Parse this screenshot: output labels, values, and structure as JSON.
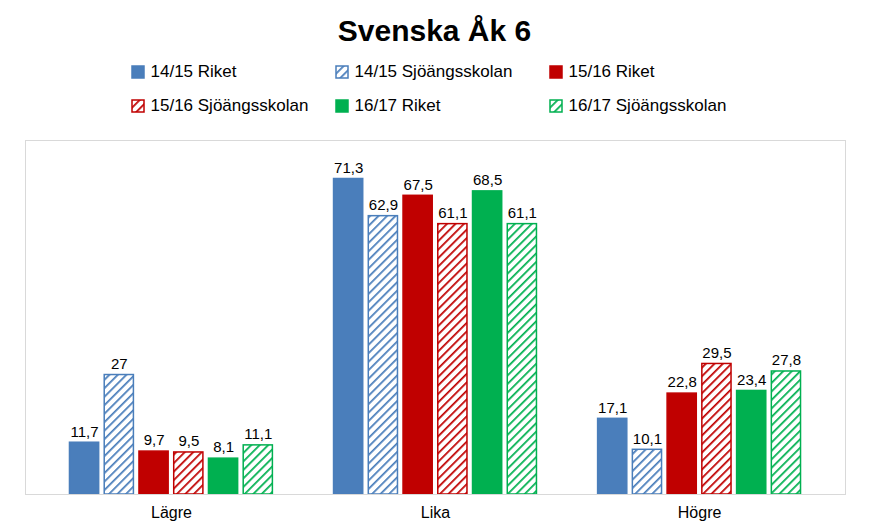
{
  "chart_data": {
    "type": "bar",
    "title": "Svenska Åk 6",
    "categories": [
      "Lägre",
      "Lika",
      "Högre"
    ],
    "series": [
      {
        "name": "14/15 Riket",
        "color": "#4a7ebb",
        "values": [
          11.7,
          71.3,
          17.1
        ],
        "value_labels": [
          "11,7",
          "71,3",
          "17,1"
        ]
      },
      {
        "name": "14/15 Sjöängsskolan",
        "color": "#4a7ebb",
        "values": [
          27,
          62.9,
          10.1
        ],
        "value_labels": [
          "27",
          "62,9",
          "10,1"
        ]
      },
      {
        "name": "15/16 Riket",
        "color": "#c00000",
        "values": [
          9.7,
          67.5,
          22.8
        ],
        "value_labels": [
          "9,7",
          "67,5",
          "22,8"
        ]
      },
      {
        "name": "15/16 Sjöängsskolan",
        "color": "#c00000",
        "values": [
          9.5,
          61.1,
          29.5
        ],
        "value_labels": [
          "9,5",
          "61,1",
          "29,5"
        ]
      },
      {
        "name": "16/17 Riket",
        "color": "#00b050",
        "values": [
          8.1,
          68.5,
          23.4
        ],
        "value_labels": [
          "8,1",
          "68,5",
          "23,4"
        ]
      },
      {
        "name": "16/17 Sjöängsskolan",
        "color": "#00b050",
        "values": [
          11.1,
          61.1,
          27.8
        ],
        "value_labels": [
          "11,1",
          "61,1",
          "27,8"
        ]
      }
    ],
    "ylim": [
      0,
      80
    ],
    "data_labels": true,
    "tick_labels": "x",
    "legend": "top"
  }
}
